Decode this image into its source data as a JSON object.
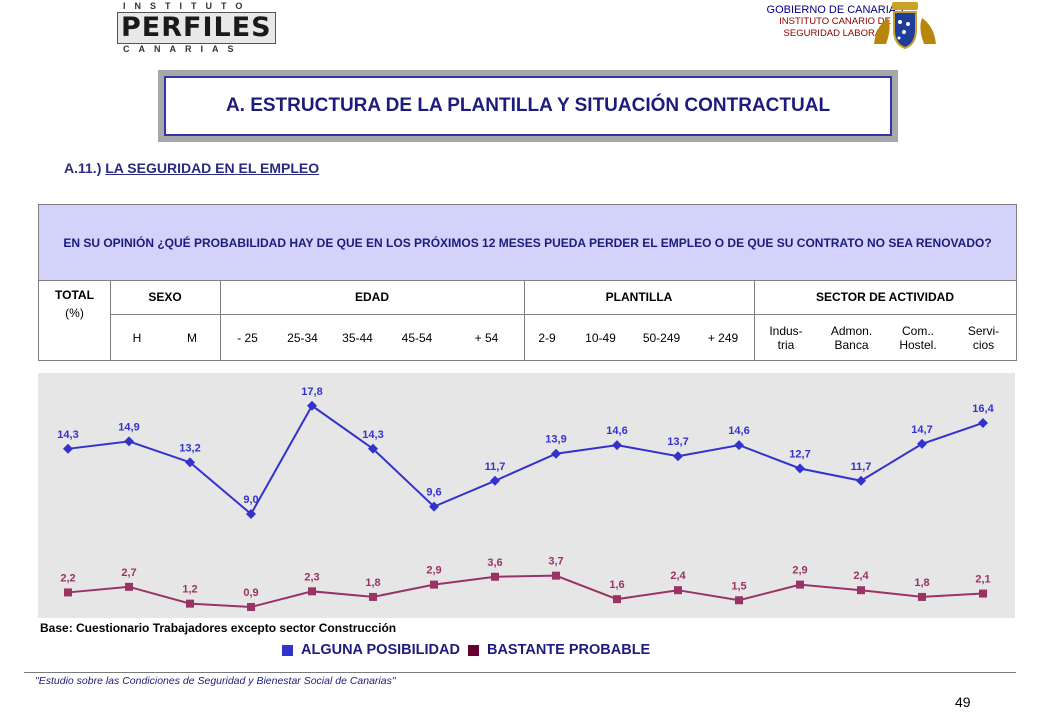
{
  "header": {
    "logo_top": "INSTITUTO",
    "logo_main": "PERFILES",
    "logo_bottom": "CANARIAS",
    "gov_line1": "GOBIERNO DE CANARIAS",
    "gov_line2": "INSTITUTO CANARIO DE",
    "gov_line3": "SEGURIDAD LABORAL"
  },
  "title": "A. ESTRUCTURA DE LA PLANTILLA Y SITUACIÓN CONTRACTUAL",
  "subtitle": {
    "prefix": "A.11.) ",
    "text": "LA SEGURIDAD EN EL EMPLEO"
  },
  "table": {
    "question": "EN SU OPINIÓN ¿QUÉ PROBABILIDAD HAY DE QUE EN LOS PRÓXIMOS 12 MESES PUEDA PERDER EL EMPLEO O DE QUE SU CONTRATO NO SEA RENOVADO?",
    "total_label": "TOTAL",
    "total_unit": "(%)",
    "groups": [
      "SEXO",
      "EDAD",
      "PLANTILLA",
      "SECTOR DE ACTIVIDAD"
    ],
    "columns": [
      "H",
      "M",
      "- 25",
      "25-34",
      "35-44",
      "45-54",
      "+ 54",
      "2-9",
      "10-49",
      "50-249",
      "+ 249",
      "Indus-\ntria",
      "Admon.\nBanca",
      "Com..\nHostel.",
      "Servi-\ncios"
    ]
  },
  "chart_data": {
    "type": "line",
    "categories": [
      "TOTAL",
      "H",
      "M",
      "- 25",
      "25-34",
      "35-44",
      "45-54",
      "+ 54",
      "2-9",
      "10-49",
      "50-249",
      "+ 249",
      "Industria",
      "Admon. Banca",
      "Com.. Hostel.",
      "Servicios"
    ],
    "series": [
      {
        "name": "ALGUNA POSIBILIDAD",
        "color": "#3333cc",
        "values": [
          14.3,
          14.9,
          13.2,
          9.0,
          17.8,
          14.3,
          9.6,
          11.7,
          13.9,
          14.6,
          13.7,
          14.6,
          12.7,
          11.7,
          14.7,
          16.4
        ],
        "labels": [
          "14,3",
          "14,9",
          "13,2",
          "9,0",
          "17,8",
          "14,3",
          "9,6",
          "11,7",
          "13,9",
          "14,6",
          "13,7",
          "14,6",
          "12,7",
          "11,7",
          "14,7",
          "16,4"
        ]
      },
      {
        "name": "BASTANTE PROBABLE",
        "color": "#993366",
        "values": [
          2.2,
          2.7,
          1.2,
          0.9,
          2.3,
          1.8,
          2.9,
          3.6,
          3.7,
          1.6,
          2.4,
          1.5,
          2.9,
          2.4,
          1.8,
          2.1
        ],
        "labels": [
          "2,2",
          "2,7",
          "1,2",
          "0,9",
          "2,3",
          "1,8",
          "2,9",
          "3,6",
          "3,7",
          "1,6",
          "2,4",
          "1,5",
          "2,9",
          "2,4",
          "1,8",
          "2,1"
        ]
      }
    ],
    "legend_position": "bottom",
    "grid": false
  },
  "base_note": "Base: Cuestionario Trabajadores excepto sector Construcción",
  "legend": {
    "item1": "ALGUNA POSIBILIDAD",
    "item2": "BASTANTE PROBABLE",
    "color1": "#3333cc",
    "color2": "#660033"
  },
  "footer": "\"Estudio sobre las Condiciones de Seguridad y Bienestar Social de Canarias\"",
  "page_number": "49"
}
